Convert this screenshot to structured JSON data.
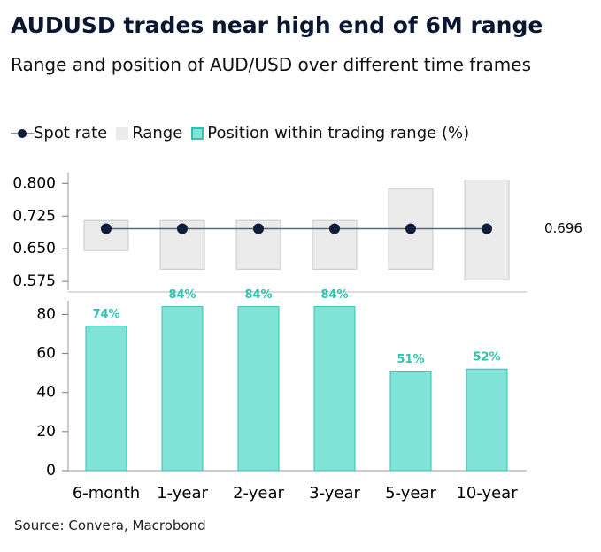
{
  "title": "AUDUSD trades near high end of 6M range",
  "subtitle": "Range and position of AUD/USD over different time frames",
  "source": "Source: Convera, Macrobond",
  "chart_data": [
    {
      "type": "range",
      "ylim": [
        0.555,
        0.825
      ],
      "yticks": [
        {
          "value": 0.575,
          "label": "0.575"
        },
        {
          "value": 0.65,
          "label": "0.650"
        },
        {
          "value": 0.725,
          "label": "0.725"
        },
        {
          "value": 0.8,
          "label": "0.800"
        }
      ],
      "series": [
        {
          "name": "Spot rate",
          "color": "#0f1c3a",
          "line_color": "#5a6880",
          "values": [
            0.696,
            0.696,
            0.696,
            0.696,
            0.696,
            0.696
          ]
        },
        {
          "name": "Range",
          "color": "#ebebeb",
          "low": [
            0.646,
            0.603,
            0.603,
            0.603,
            0.603,
            0.579
          ],
          "high": [
            0.715,
            0.715,
            0.715,
            0.715,
            0.788,
            0.808
          ]
        }
      ]
    },
    {
      "type": "bar",
      "categories": [
        "6-month",
        "1-year",
        "2-year",
        "3-year",
        "5-year",
        "10-year"
      ],
      "ylim": [
        0,
        87
      ],
      "yticks": [
        0,
        20,
        40,
        60,
        80
      ],
      "series": [
        {
          "name": "Position within trading range (%)",
          "color": "#7fe3d8",
          "values": [
            74,
            84,
            84,
            84,
            51,
            52
          ],
          "value_labels": [
            "74%",
            "84%",
            "84%",
            "84%",
            "51%",
            "52%"
          ]
        }
      ]
    }
  ]
}
